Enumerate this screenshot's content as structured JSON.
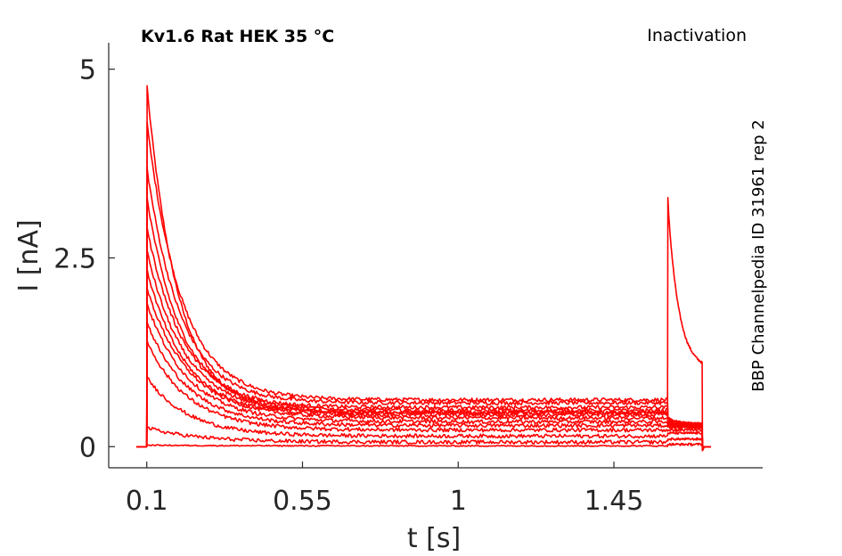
{
  "chart_data": {
    "type": "line",
    "title": "Kv1.6  Rat  HEK  35 °C",
    "protocol_label": "Inactivation",
    "side_label": "BBP Channelpedia ID 31961 rep 2",
    "xlabel": "t [s]",
    "ylabel": "I [nA]",
    "xlim": [
      -0.01,
      1.88
    ],
    "ylim": [
      -0.28,
      5.35
    ],
    "x_ticks": [
      0.1,
      0.55,
      1,
      1.45
    ],
    "x_tick_labels": [
      "0.1",
      "0.55",
      "1",
      "1.45"
    ],
    "y_ticks": [
      0,
      2.5,
      5
    ],
    "y_tick_labels": [
      "0",
      "2.5",
      "5"
    ],
    "grid": false,
    "legend": "none",
    "line_color": "#ff0000",
    "step_on": 0.1,
    "step_off": 1.605,
    "tail_off": 1.705,
    "trace_start": 0.07,
    "trace_end": 1.73,
    "series": [
      {
        "peak": 4.78,
        "steady": 0.45,
        "tau": 0.09,
        "tail_peak": 3.3,
        "tail_end": 1.02
      },
      {
        "peak": 4.3,
        "steady": 0.62,
        "tau": 0.1,
        "tail_peak": 0.38,
        "tail_end": 0.3
      },
      {
        "peak": 3.7,
        "steady": 0.58,
        "tau": 0.1,
        "tail_peak": 0.36,
        "tail_end": 0.3
      },
      {
        "peak": 3.3,
        "steady": 0.52,
        "tau": 0.1,
        "tail_peak": 0.35,
        "tail_end": 0.3
      },
      {
        "peak": 2.9,
        "steady": 0.48,
        "tau": 0.11,
        "tail_peak": 0.34,
        "tail_end": 0.29
      },
      {
        "peak": 2.6,
        "steady": 0.45,
        "tau": 0.11,
        "tail_peak": 0.33,
        "tail_end": 0.28
      },
      {
        "peak": 2.35,
        "steady": 0.42,
        "tau": 0.11,
        "tail_peak": 0.32,
        "tail_end": 0.28
      },
      {
        "peak": 2.1,
        "steady": 0.38,
        "tau": 0.12,
        "tail_peak": 0.3,
        "tail_end": 0.27
      },
      {
        "peak": 1.9,
        "steady": 0.33,
        "tau": 0.12,
        "tail_peak": 0.28,
        "tail_end": 0.26
      },
      {
        "peak": 1.65,
        "steady": 0.28,
        "tau": 0.12,
        "tail_peak": 0.26,
        "tail_end": 0.25
      },
      {
        "peak": 1.4,
        "steady": 0.22,
        "tau": 0.12,
        "tail_peak": 0.22,
        "tail_end": 0.22
      },
      {
        "peak": 0.92,
        "steady": 0.14,
        "tau": 0.12,
        "tail_peak": 0.18,
        "tail_end": 0.18
      },
      {
        "peak": 0.25,
        "steady": 0.06,
        "tau": 0.15,
        "tail_peak": 0.1,
        "tail_end": 0.1
      },
      {
        "peak": 0.02,
        "steady": 0.01,
        "tau": 0.2,
        "tail_peak": 0.03,
        "tail_end": 0.03
      }
    ]
  }
}
